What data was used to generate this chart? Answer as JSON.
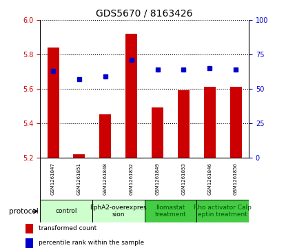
{
  "title": "GDS5670 / 8163426",
  "samples": [
    "GSM1261847",
    "GSM1261851",
    "GSM1261848",
    "GSM1261852",
    "GSM1261849",
    "GSM1261853",
    "GSM1261846",
    "GSM1261850"
  ],
  "transformed_counts": [
    5.84,
    5.22,
    5.45,
    5.92,
    5.49,
    5.59,
    5.61,
    5.61
  ],
  "percentile_ranks": [
    63,
    57,
    59,
    71,
    64,
    64,
    65,
    64
  ],
  "ylim_left": [
    5.2,
    6.0
  ],
  "ylim_right": [
    0,
    100
  ],
  "yticks_left": [
    5.2,
    5.4,
    5.6,
    5.8,
    6.0
  ],
  "yticks_right": [
    0,
    25,
    50,
    75,
    100
  ],
  "bar_color": "#cc0000",
  "dot_color": "#0000cc",
  "bar_bottom": 5.2,
  "protocols": [
    {
      "label": "control",
      "indices": [
        0,
        1
      ],
      "color": "#ccffcc"
    },
    {
      "label": "EphA2-overexpres\nsion",
      "indices": [
        2,
        3
      ],
      "color": "#ccffcc"
    },
    {
      "label": "Ilomastat\ntreatment",
      "indices": [
        4,
        5
      ],
      "color": "#44cc44"
    },
    {
      "label": "Rho activator Calp\neptin treatment",
      "indices": [
        6,
        7
      ],
      "color": "#44cc44"
    }
  ],
  "protocol_label": "protocol",
  "legend_items": [
    {
      "color": "#cc0000",
      "label": "transformed count"
    },
    {
      "color": "#0000cc",
      "label": "percentile rank within the sample"
    }
  ],
  "tick_label_color_left": "#cc0000",
  "tick_label_color_right": "#0000cc",
  "bg_color": "#ffffff",
  "sample_box_color": "#cccccc",
  "bar_width": 0.45,
  "dot_size": 5,
  "title_fontsize": 10,
  "tick_fontsize": 7,
  "sample_fontsize": 5,
  "proto_fontsize": 6.5,
  "legend_fontsize": 6.5,
  "proto_label_fontsize": 7.5
}
